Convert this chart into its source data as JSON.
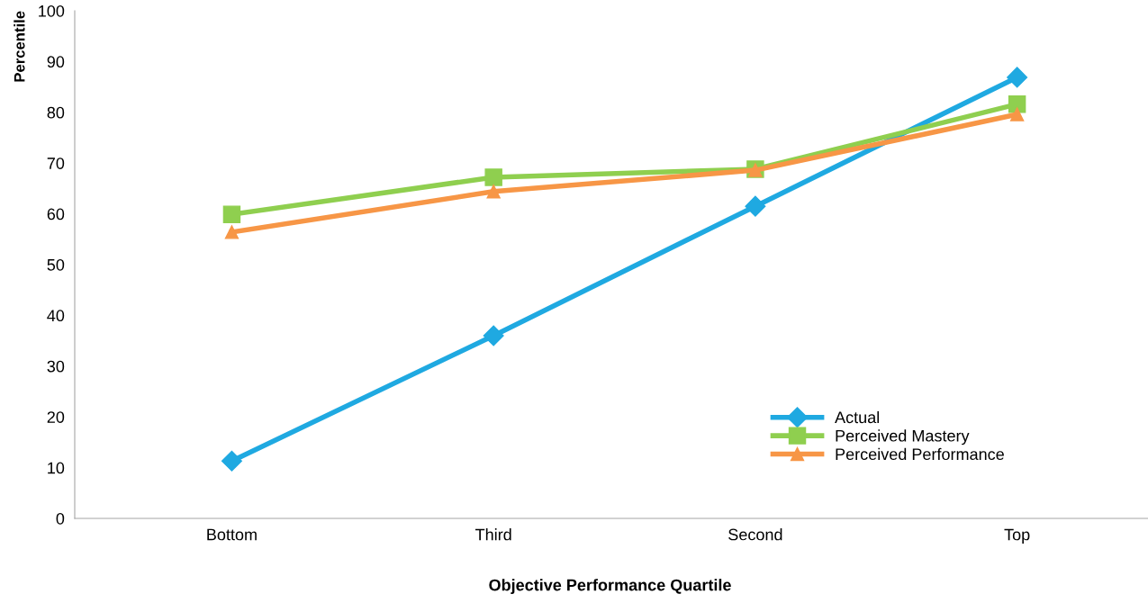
{
  "chart_data": {
    "type": "line",
    "xlabel": "Objective Performance Quartile",
    "ylabel": "Percentile",
    "categories": [
      "Bottom",
      "Third",
      "Second",
      "Top"
    ],
    "series": [
      {
        "name": "Actual",
        "color": "#1fa9e1",
        "marker": "diamond",
        "values": [
          11.3,
          36.0,
          61.5,
          86.9
        ]
      },
      {
        "name": "Perceived Mastery",
        "color": "#8fcf4f",
        "marker": "square",
        "values": [
          59.9,
          67.2,
          68.8,
          81.6
        ]
      },
      {
        "name": "Perceived Performance",
        "color": "#f79646",
        "marker": "triangle",
        "values": [
          56.4,
          64.4,
          68.6,
          79.6
        ]
      }
    ],
    "ylim": [
      0,
      100
    ],
    "yticks": [
      0,
      10,
      20,
      30,
      40,
      50,
      60,
      70,
      80,
      90,
      100
    ],
    "grid": false,
    "legend": "bottom right",
    "line_style": "solid"
  }
}
